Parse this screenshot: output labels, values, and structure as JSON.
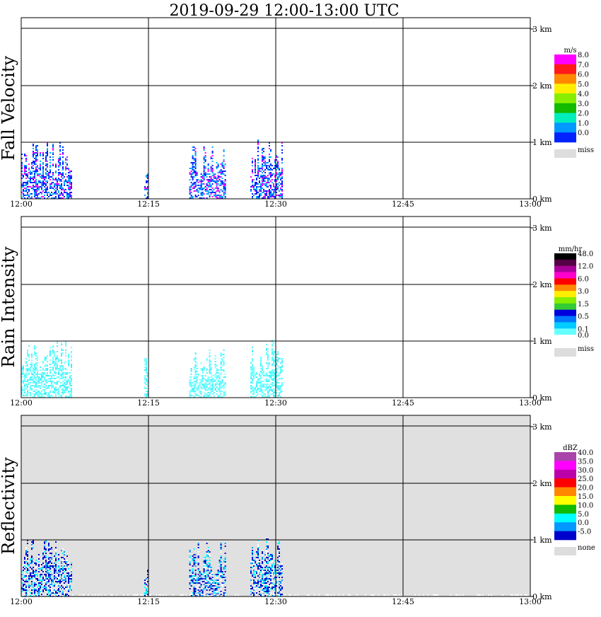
{
  "title": "2019-09-29   12:00-13:00 UTC",
  "x_ticks": [
    "12:00",
    "12:15",
    "12:30",
    "12:45",
    "13:00"
  ],
  "y_ticks": [
    "0 km",
    "1 km",
    "2 km",
    "3 km"
  ],
  "panels": [
    {
      "label": "Fall Velocity",
      "unit": "m/s",
      "background": "#ffffff",
      "colorbar": [
        {
          "color": "#ff00ff",
          "label": "8.0"
        },
        {
          "color": "#ff1a1a",
          "label": "7.0"
        },
        {
          "color": "#ff8800",
          "label": "6.0"
        },
        {
          "color": "#ffee00",
          "label": "5.0"
        },
        {
          "color": "#88ee00",
          "label": "4.0"
        },
        {
          "color": "#11bb00",
          "label": "3.0"
        },
        {
          "color": "#00eebb",
          "label": "2.0"
        },
        {
          "color": "#0099ff",
          "label": "1.0"
        },
        {
          "color": "#0022ff",
          "label": "0.0"
        }
      ],
      "miss_label": "miss"
    },
    {
      "label": "Rain Intensity",
      "unit": "mm/hr",
      "background": "#ffffff",
      "colorbar": [
        {
          "color": "#000000",
          "label": "48.0"
        },
        {
          "color": "#550044",
          "label": ""
        },
        {
          "color": "#aa0099",
          "label": "12.0"
        },
        {
          "color": "#ff00cc",
          "label": ""
        },
        {
          "color": "#ff0000",
          "label": "6.0"
        },
        {
          "color": "#ff8800",
          "label": ""
        },
        {
          "color": "#ffee00",
          "label": "3.0"
        },
        {
          "color": "#88ee00",
          "label": ""
        },
        {
          "color": "#33cc33",
          "label": "1.5"
        },
        {
          "color": "#0000dd",
          "label": ""
        },
        {
          "color": "#0077ff",
          "label": "0.5"
        },
        {
          "color": "#00ccff",
          "label": ""
        },
        {
          "color": "#66ffff",
          "label": "0.1"
        },
        {
          "color": "#ffffff",
          "label": "0.0"
        }
      ],
      "miss_label": "miss"
    },
    {
      "label": "Reflectivity",
      "unit": "dBZ",
      "background": "#e0e0e0",
      "colorbar": [
        {
          "color": "#aa44aa",
          "label": "40.0"
        },
        {
          "color": "#ff00ff",
          "label": "35.0"
        },
        {
          "color": "#bb00aa",
          "label": "30.0"
        },
        {
          "color": "#ff0000",
          "label": "25.0"
        },
        {
          "color": "#ff8800",
          "label": "20.0"
        },
        {
          "color": "#ffff00",
          "label": "15.0"
        },
        {
          "color": "#11bb00",
          "label": "10.0"
        },
        {
          "color": "#00ffff",
          "label": "5.0"
        },
        {
          "color": "#0099ff",
          "label": "0.0"
        },
        {
          "color": "#0000cc",
          "label": "-5.0"
        }
      ],
      "miss_label": "none"
    }
  ],
  "chart_data": {
    "type": "heatmap",
    "title": "2019-09-29   12:00-13:00 UTC",
    "x_range_minutes_utc": [
      "12:00",
      "13:00"
    ],
    "y_range_km": [
      0,
      3.2
    ],
    "grid": true,
    "echo_clusters": [
      {
        "start": "12:00",
        "end": "12:06",
        "top_km": 1.0
      },
      {
        "start": "12:14.5",
        "end": "12:15",
        "top_km": 0.7
      },
      {
        "start": "12:19.8",
        "end": "12:24",
        "top_km": 0.95
      },
      {
        "start": "12:27",
        "end": "12:30.8",
        "top_km": 1.05
      }
    ]
  }
}
